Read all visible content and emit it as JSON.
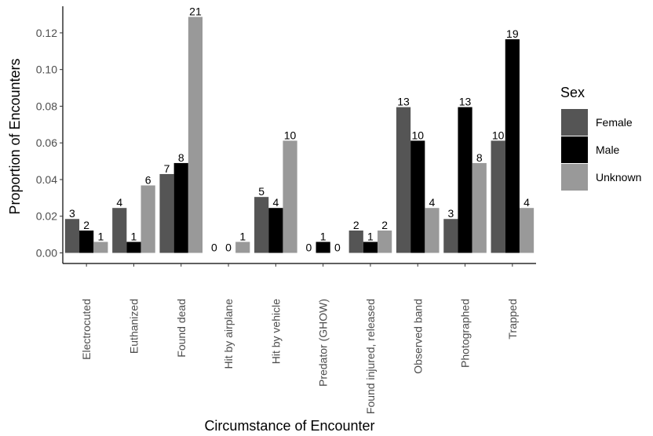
{
  "chart_data": {
    "type": "bar",
    "xlabel": "Circumstance of Encounter",
    "ylabel": "Proportion of Encounters",
    "ylim": [
      0,
      0.1345
    ],
    "yticks": [
      "0.00",
      "0.02",
      "0.04",
      "0.06",
      "0.08",
      "0.10",
      "0.12"
    ],
    "grid": false,
    "legend_position": "right",
    "legend_title": "Sex",
    "categories": [
      "Electrocuted",
      "Euthanized",
      "Found dead",
      "Hit by airplane",
      "Hit by vehicle",
      "Predator (GHOW)",
      "Found injured, released",
      "Observed band",
      "Photographed",
      "Trapped"
    ],
    "series": [
      {
        "name": "Female",
        "color": "#555555",
        "values": [
          0.0185,
          0.0245,
          0.043,
          0,
          0.0305,
          0,
          0.0122,
          0.0795,
          0.0185,
          0.0612
        ],
        "labels": [
          "3",
          "4",
          "7",
          "0",
          "5",
          "0",
          "2",
          "13",
          "3",
          "10"
        ]
      },
      {
        "name": "Male",
        "color": "#000000",
        "values": [
          0.0122,
          0.006,
          0.049,
          0,
          0.0245,
          0.006,
          0.006,
          0.0612,
          0.0795,
          0.1165
        ],
        "labels": [
          "2",
          "1",
          "8",
          "0",
          "4",
          "1",
          "1",
          "10",
          "13",
          "19"
        ]
      },
      {
        "name": "Unknown",
        "color": "#999999",
        "values": [
          0.006,
          0.0368,
          0.1287,
          0.006,
          0.0612,
          0,
          0.0122,
          0.0245,
          0.049,
          0.0245
        ],
        "labels": [
          "1",
          "6",
          "21",
          "1",
          "10",
          "0",
          "2",
          "4",
          "8",
          "4"
        ]
      }
    ]
  }
}
